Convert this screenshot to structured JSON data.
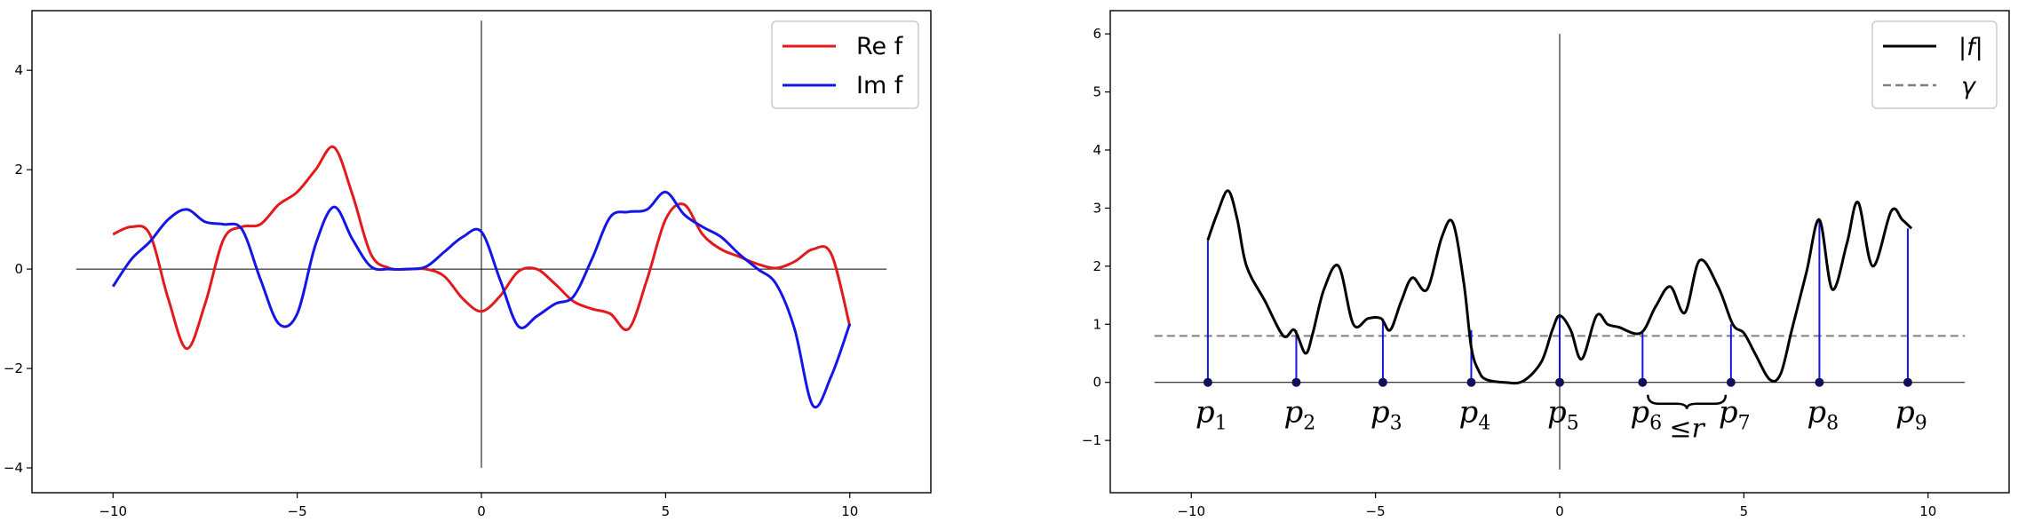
{
  "chart_data": [
    {
      "type": "line",
      "title": "",
      "xlabel": "",
      "ylabel": "",
      "xlim": [
        -12.2,
        12.2
      ],
      "ylim": [
        -4.5,
        5.2
      ],
      "xticks": [
        -10,
        -5,
        0,
        5,
        10
      ],
      "xtick_labels": [
        "−10",
        "−5",
        "0",
        "5",
        "10"
      ],
      "yticks": [
        -4,
        -2,
        0,
        2,
        4
      ],
      "ytick_labels": [
        "−4",
        "−2",
        "0",
        "2",
        "4"
      ],
      "grid": false,
      "legend_position": "top-right",
      "reference_lines": {
        "horizontal": {
          "y": 0,
          "x_range": [
            -11,
            11
          ]
        },
        "vertical": {
          "x": 0,
          "y_range": [
            -4,
            5
          ]
        }
      },
      "series": [
        {
          "name": "Re f",
          "color": "#e31a1c",
          "x": [
            -10,
            -9.5,
            -9,
            -8.5,
            -8,
            -7.5,
            -7,
            -6.5,
            -6,
            -5.5,
            -5,
            -4.5,
            -4,
            -3.5,
            -3,
            -2.5,
            -2,
            -1.5,
            -1,
            -0.5,
            0,
            0.5,
            1,
            1.5,
            2,
            2.5,
            3,
            3.5,
            4,
            4.5,
            5,
            5.5,
            6,
            6.5,
            7,
            7.5,
            8,
            8.5,
            9,
            9.5,
            10
          ],
          "y": [
            0.7,
            0.85,
            0.7,
            -0.6,
            -1.6,
            -0.7,
            0.6,
            0.85,
            0.9,
            1.3,
            1.55,
            2.0,
            2.45,
            1.5,
            0.3,
            0.02,
            0.0,
            0.0,
            -0.15,
            -0.6,
            -0.85,
            -0.55,
            -0.05,
            0.0,
            -0.3,
            -0.65,
            -0.8,
            -0.9,
            -1.2,
            -0.2,
            1.0,
            1.3,
            0.7,
            0.4,
            0.25,
            0.1,
            0.02,
            0.15,
            0.4,
            0.3,
            -1.15
          ]
        },
        {
          "name": "Im f",
          "color": "#1515e6",
          "x": [
            -10,
            -9.5,
            -9,
            -8.5,
            -8,
            -7.5,
            -7,
            -6.5,
            -6,
            -5.5,
            -5,
            -4.5,
            -4,
            -3.5,
            -3,
            -2.5,
            -2,
            -1.5,
            -1,
            -0.5,
            0,
            0.5,
            1,
            1.5,
            2,
            2.5,
            3,
            3.5,
            4,
            4.5,
            5,
            5.5,
            6,
            6.5,
            7,
            7.5,
            8,
            8.5,
            9,
            9.5,
            10
          ],
          "y": [
            -0.35,
            0.2,
            0.55,
            1.0,
            1.2,
            0.95,
            0.9,
            0.8,
            -0.2,
            -1.1,
            -0.9,
            0.5,
            1.25,
            0.6,
            0.05,
            0.0,
            0.0,
            0.05,
            0.35,
            0.65,
            0.75,
            -0.2,
            -1.15,
            -0.95,
            -0.7,
            -0.55,
            0.2,
            1.05,
            1.15,
            1.2,
            1.55,
            1.1,
            0.85,
            0.65,
            0.3,
            0.0,
            -0.3,
            -1.2,
            -2.75,
            -2.15,
            -1.1
          ]
        }
      ]
    },
    {
      "type": "line",
      "title": "",
      "xlabel": "",
      "ylabel": "",
      "xlim": [
        -12.2,
        12.2
      ],
      "ylim": [
        -1.9,
        6.4
      ],
      "xticks": [
        -10,
        -5,
        0,
        5,
        10
      ],
      "xtick_labels": [
        "−10",
        "−5",
        "0",
        "5",
        "10"
      ],
      "yticks": [
        -1,
        0,
        1,
        2,
        3,
        4,
        5,
        6
      ],
      "ytick_labels": [
        "−1",
        "0",
        "1",
        "2",
        "3",
        "4",
        "5",
        "6"
      ],
      "grid": false,
      "legend_position": "top-right",
      "reference_lines": {
        "horizontal": {
          "y": 0,
          "x_range": [
            -11,
            11
          ]
        },
        "vertical": {
          "x": 0,
          "y_range": [
            -1.5,
            6
          ]
        }
      },
      "series": [
        {
          "name": "|f|",
          "color": "#000000",
          "x": [
            -9.55,
            -9.3,
            -9,
            -8.75,
            -8.5,
            -8,
            -7.5,
            -7.2,
            -6.9,
            -6.7,
            -6.4,
            -6,
            -5.6,
            -5.2,
            -4.85,
            -4.6,
            -4.3,
            -4,
            -3.6,
            -3.2,
            -2.9,
            -2.6,
            -2.4,
            -2.2,
            -2,
            -1.5,
            -1,
            -0.5,
            -0.2,
            0,
            0.3,
            0.6,
            1,
            1.3,
            1.6,
            2.2,
            2.6,
            3,
            3.4,
            3.8,
            4.3,
            4.7,
            5,
            5.3,
            5.7,
            6,
            6.3,
            6.7,
            7.05,
            7.4,
            7.8,
            8.1,
            8.5,
            9,
            9.3,
            9.55
          ],
          "y": [
            2.45,
            2.9,
            3.3,
            2.8,
            2.0,
            1.4,
            0.8,
            0.9,
            0.5,
            0.85,
            1.6,
            2.0,
            1.0,
            1.1,
            1.1,
            0.9,
            1.4,
            1.8,
            1.6,
            2.5,
            2.75,
            1.7,
            0.6,
            0.2,
            0.05,
            0.0,
            0.02,
            0.35,
            0.9,
            1.15,
            0.9,
            0.4,
            1.15,
            1.0,
            0.95,
            0.85,
            1.3,
            1.65,
            1.2,
            2.1,
            1.65,
            1.0,
            0.85,
            0.5,
            0.05,
            0.15,
            0.9,
            1.9,
            2.8,
            1.6,
            2.4,
            3.1,
            2.0,
            2.95,
            2.8,
            2.65
          ]
        },
        {
          "name": "γ",
          "color": "#7f7f7f",
          "style": "dashed",
          "y": 0.8,
          "x_range": [
            -11,
            11
          ]
        }
      ],
      "points": [
        {
          "x": -9.55,
          "label": "p",
          "sub": "1",
          "stem": 2.45
        },
        {
          "x": -7.15,
          "label": "p",
          "sub": "2",
          "stem": 0.9
        },
        {
          "x": -4.8,
          "label": "p",
          "sub": "3",
          "stem": 1.1
        },
        {
          "x": -2.4,
          "label": "p",
          "sub": "4",
          "stem": 0.9
        },
        {
          "x": 0.0,
          "label": "p",
          "sub": "5",
          "stem": 1.15
        },
        {
          "x": 2.25,
          "label": "p",
          "sub": "6",
          "stem": 0.85
        },
        {
          "x": 4.65,
          "label": "p",
          "sub": "7",
          "stem": 1.0
        },
        {
          "x": 7.05,
          "label": "p",
          "sub": "8",
          "stem": 2.8
        },
        {
          "x": 9.45,
          "label": "p",
          "sub": "9",
          "stem": 2.65
        }
      ],
      "annotations": [
        {
          "type": "brace",
          "from_x": 2.25,
          "to_x": 4.65,
          "text": "≤r"
        }
      ]
    }
  ]
}
